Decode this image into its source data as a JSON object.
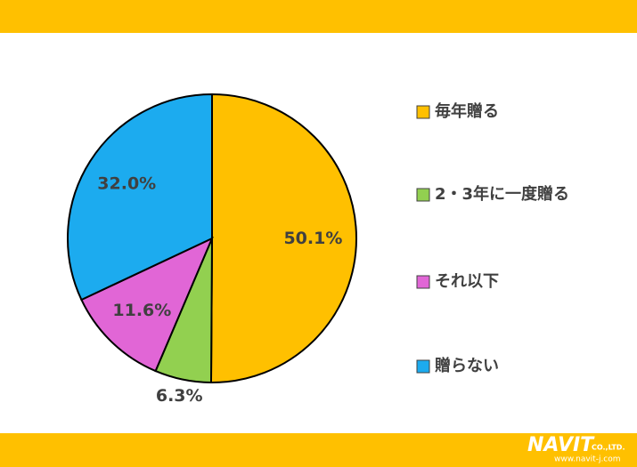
{
  "chart_data": {
    "type": "pie",
    "categories": [
      "毎年贈る",
      "2・3年に一度贈る",
      "それ以下",
      "贈らない"
    ],
    "values": [
      50.1,
      6.3,
      11.6,
      32.0
    ],
    "value_labels": [
      "50.1%",
      "6.3%",
      "11.6%",
      "32.0%"
    ],
    "colors": [
      "#FFC000",
      "#92D050",
      "#E166D6",
      "#1CABEF"
    ],
    "legend": "right"
  },
  "logo": {
    "name": "NAVIT",
    "suffix": "CO.,LTD.",
    "url": "www.navit-j.com"
  }
}
